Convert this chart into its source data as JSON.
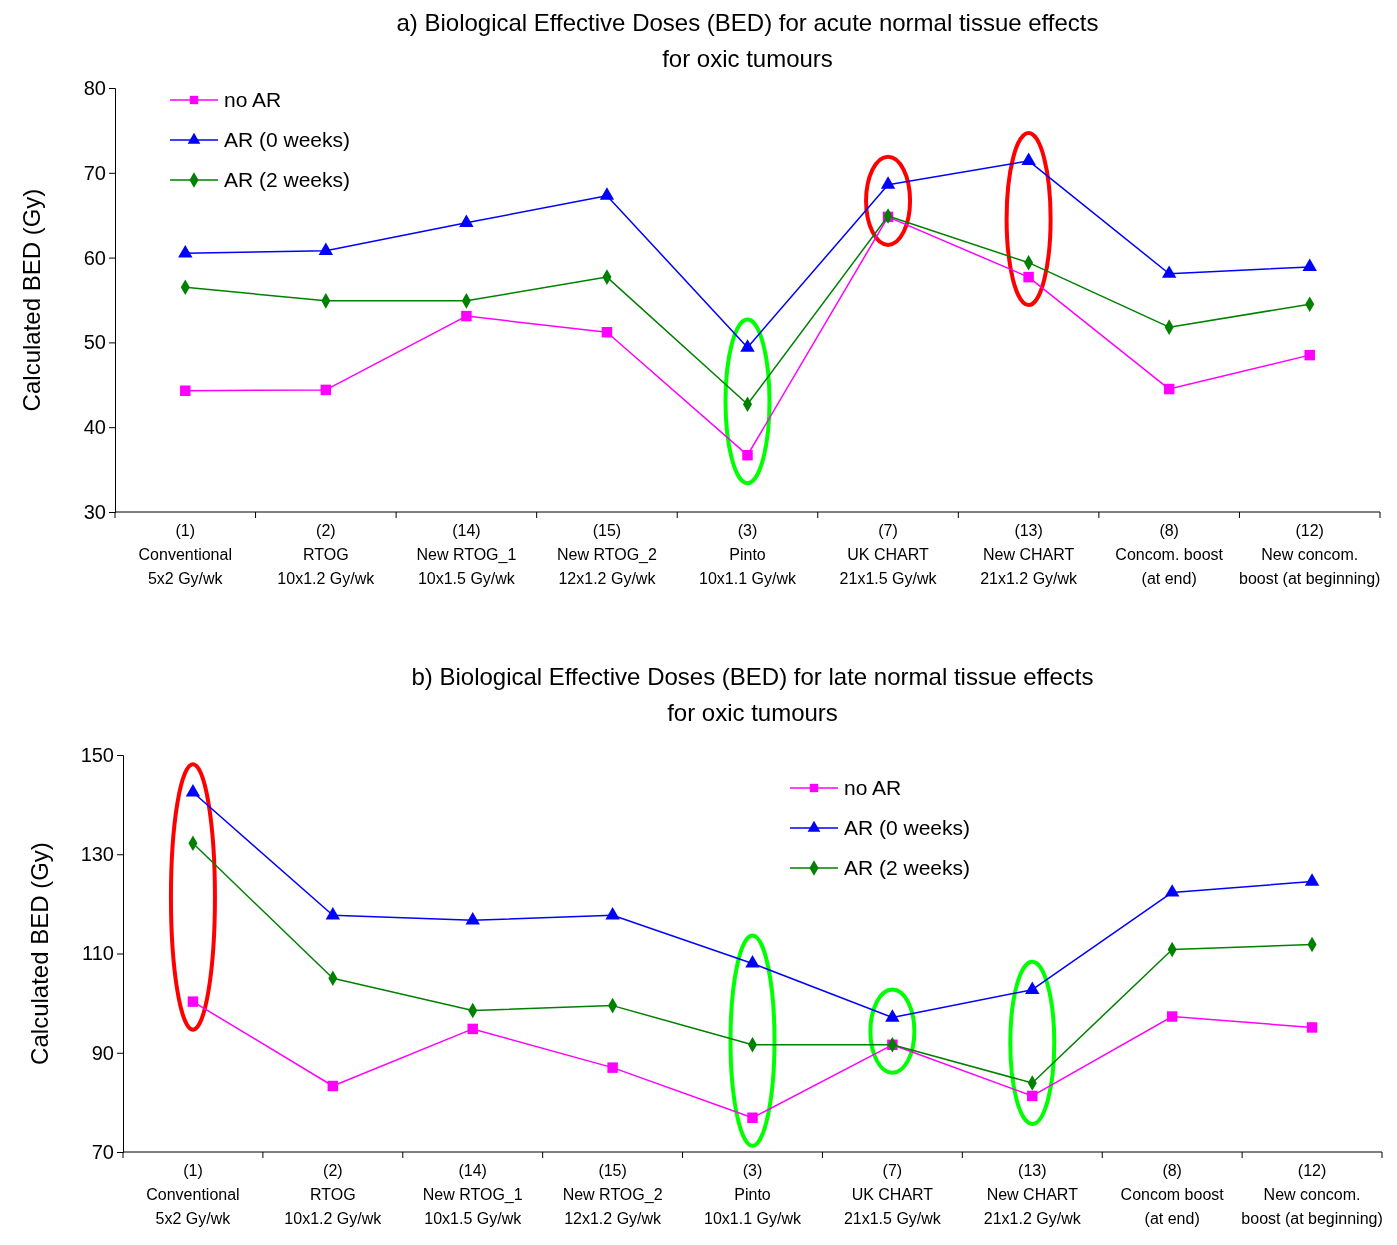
{
  "chart_data": [
    {
      "type": "line",
      "title": "a) Biological Effective Doses (BED) for acute normal tissue effects\nfor oxic tumours",
      "ylabel": "Calculated BED (Gy)",
      "categories": [
        "(1)\nConventional\n5x2 Gy/wk",
        "(2)\nRTOG\n10x1.2 Gy/wk",
        "(14)\nNew RTOG_1\n10x1.5 Gy/wk",
        "(15)\nNew RTOG_2\n12x1.2 Gy/wk",
        "(3)\nPinto\n10x1.1 Gy/wk",
        "(7)\nUK  CHART\n21x1.5 Gy/wk",
        "(13)\nNew CHART\n21x1.2 Gy/wk",
        "(8)\nConcom. boost\n(at end)",
        "(12)\nNew concom.\nboost (at beginning)"
      ],
      "series": [
        {
          "name": "no AR",
          "color": "#ff00ff",
          "marker": "square",
          "values": [
            44.3,
            44.4,
            53.1,
            51.2,
            36.7,
            64.8,
            57.7,
            44.5,
            48.5
          ]
        },
        {
          "name": "AR (0 weeks)",
          "color": "#0000ff",
          "marker": "triangle",
          "values": [
            60.5,
            60.8,
            64.1,
            67.3,
            49.4,
            68.6,
            71.4,
            58.1,
            58.9
          ]
        },
        {
          "name": "AR (2 weeks)",
          "color": "#008000",
          "marker": "diamond",
          "values": [
            56.5,
            54.9,
            54.9,
            57.7,
            42.7,
            64.9,
            59.4,
            51.8,
            54.5
          ]
        }
      ],
      "ylim": [
        30,
        80
      ],
      "yticks": [
        30,
        40,
        50,
        60,
        70,
        80
      ],
      "grid": false,
      "legend": "top left"
    },
    {
      "type": "line",
      "title": "b) Biological Effective Doses (BED) for late normal tissue effects\nfor oxic tumours",
      "ylabel": "Calculated BED (Gy)",
      "categories": [
        "(1)\nConventional\n5x2 Gy/wk",
        "(2)\nRTOG\n10x1.2 Gy/wk",
        "(14)\nNew RTOG_1\n10x1.5 Gy/wk",
        "(15)\nNew RTOG_2\n12x1.2 Gy/wk",
        "(3)\nPinto\n10x1.1 Gy/wk",
        "(7)\nUK  CHART\n21x1.5 Gy/wk",
        "(13)\nNew CHART\n21x1.2 Gy/wk",
        "(8)\nConcom boost\n(at end)",
        "(12)\nNew concom.\nboost (at beginning)"
      ],
      "series": [
        {
          "name": "no AR",
          "color": "#ff00ff",
          "marker": "square",
          "values": [
            100.3,
            83.3,
            94.8,
            87,
            76.9,
            91.6,
            81.3,
            97.3,
            95.1
          ]
        },
        {
          "name": "AR (0 weeks)",
          "color": "#0000ff",
          "marker": "triangle",
          "values": [
            142.5,
            117.7,
            116.7,
            117.7,
            108,
            97.1,
            102.7,
            122.3,
            124.5
          ]
        },
        {
          "name": "AR (2 weeks)",
          "color": "#008000",
          "marker": "diamond",
          "values": [
            132.2,
            105,
            98.5,
            99.5,
            91.6,
            91.6,
            83.9,
            110.8,
            111.8
          ]
        }
      ],
      "ylim": [
        70,
        150
      ],
      "yticks": [
        70,
        90,
        110,
        130,
        150
      ],
      "grid": false,
      "legend": "top right"
    }
  ]
}
